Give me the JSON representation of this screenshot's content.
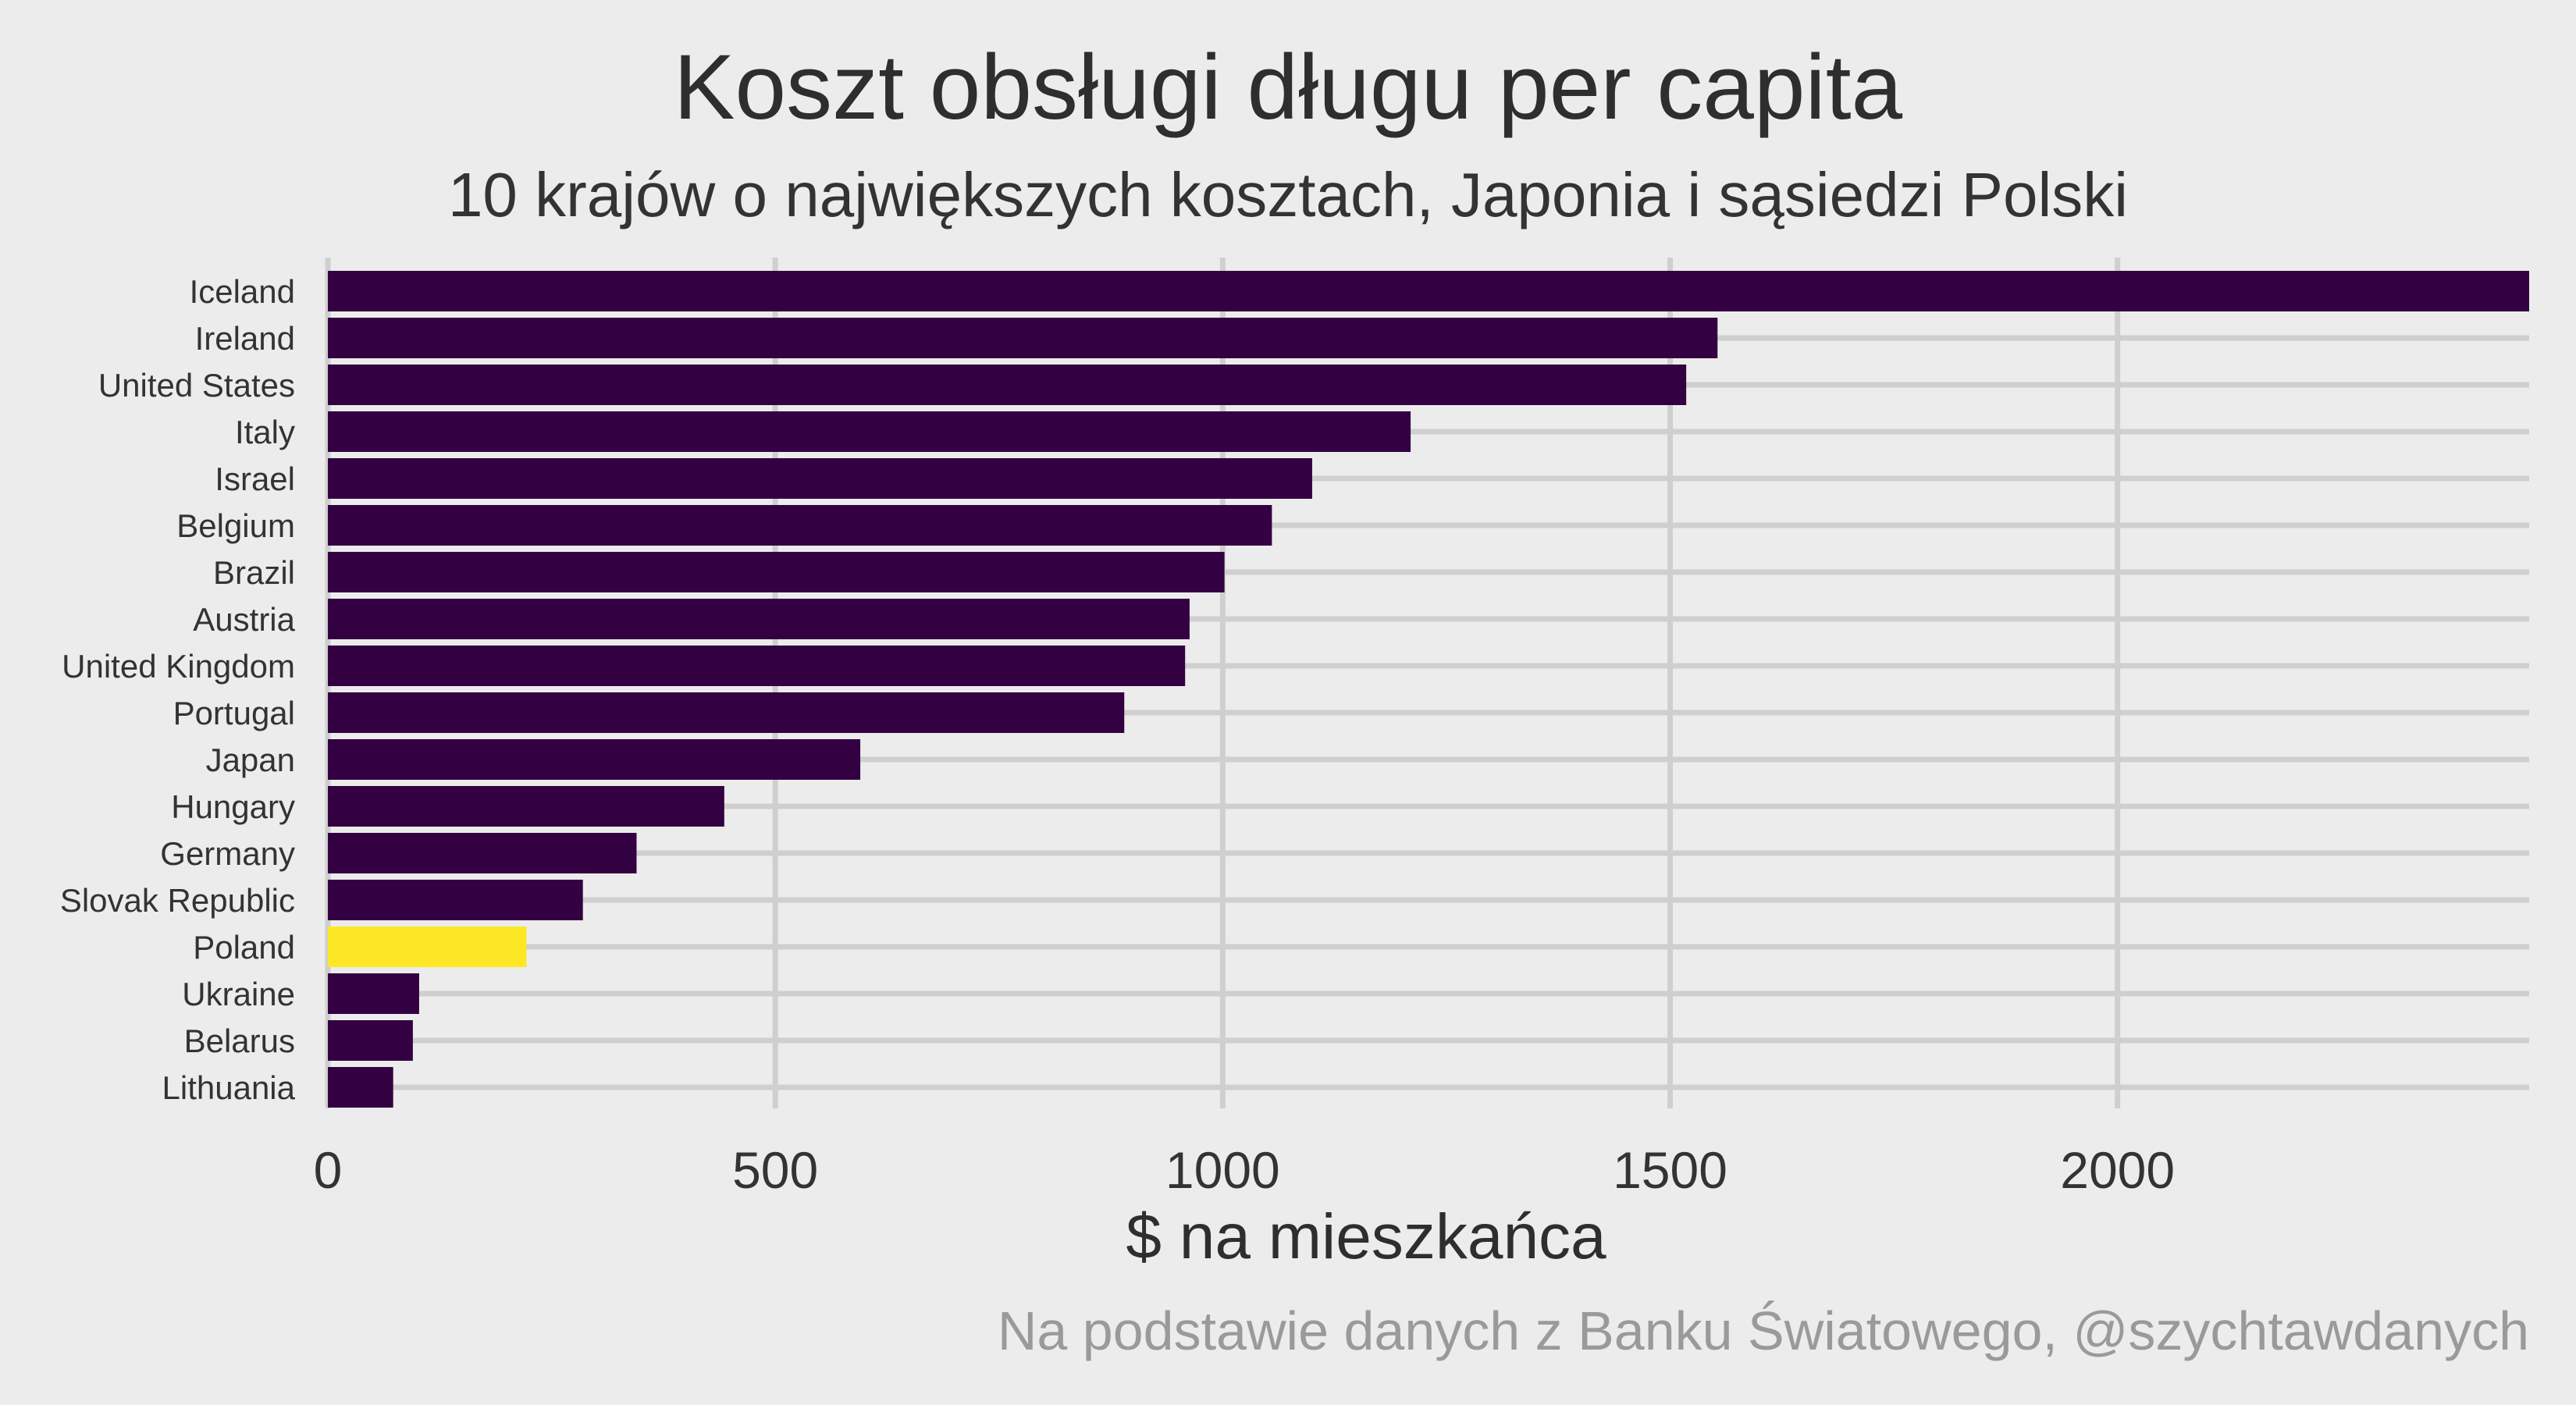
{
  "chart_data": {
    "type": "bar",
    "orientation": "horizontal",
    "title": "Koszt obsługi długu per capita",
    "subtitle": "10 krajów o największych kosztach, Japonia i sąsiedzi Polski",
    "xlabel": "$ na mieszkańca",
    "ylabel": "",
    "caption": "Na podstawie danych z Banku Światowego, @szychtawdanych",
    "xlim": [
      0,
      2460
    ],
    "xticks": [
      0,
      500,
      1000,
      1500,
      2000
    ],
    "grid": true,
    "categories": [
      "Iceland",
      "Ireland",
      "United States",
      "Italy",
      "Israel",
      "Belgium",
      "Brazil",
      "Austria",
      "United Kingdom",
      "Portugal",
      "Japan",
      "Hungary",
      "Germany",
      "Slovak Republic",
      "Poland",
      "Ukraine",
      "Belarus",
      "Lithuania"
    ],
    "values": [
      2460,
      1553,
      1518,
      1210,
      1100,
      1055,
      1002,
      963,
      958,
      890,
      595,
      443,
      345,
      285,
      222,
      102,
      95,
      73
    ],
    "highlight": "Poland",
    "colors": {
      "bar": "#330042",
      "highlight": "#fde725",
      "grid": "#cfcfcf",
      "background": "#ececec"
    }
  }
}
